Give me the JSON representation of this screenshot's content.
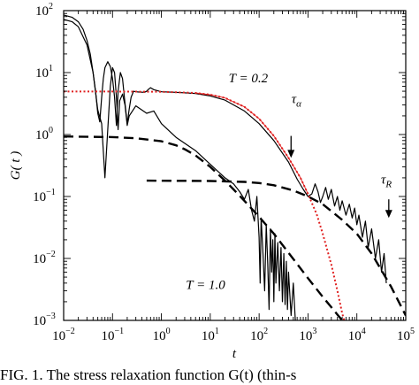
{
  "chart_data": {
    "type": "line",
    "title": "",
    "xlabel": "t",
    "ylabel": "G( t )",
    "xscale": "log",
    "yscale": "log",
    "xlim": [
      0.01,
      100000
    ],
    "ylim": [
      0.001,
      100
    ],
    "x_ticks": [
      {
        "base": "10",
        "exp": "−2",
        "value": 0.01
      },
      {
        "base": "10",
        "exp": "−1",
        "value": 0.1
      },
      {
        "base": "10",
        "exp": "0",
        "value": 1
      },
      {
        "base": "10",
        "exp": "1",
        "value": 10
      },
      {
        "base": "10",
        "exp": "2",
        "value": 100
      },
      {
        "base": "10",
        "exp": "3",
        "value": 1000
      },
      {
        "base": "10",
        "exp": "4",
        "value": 10000
      },
      {
        "base": "10",
        "exp": "5",
        "value": 100000
      }
    ],
    "y_ticks": [
      {
        "base": "10",
        "exp": "−3",
        "value": 0.001
      },
      {
        "base": "10",
        "exp": "−2",
        "value": 0.01
      },
      {
        "base": "10",
        "exp": "−1",
        "value": 0.1
      },
      {
        "base": "10",
        "exp": "0",
        "value": 1
      },
      {
        "base": "10",
        "exp": "1",
        "value": 10
      },
      {
        "base": "10",
        "exp": "2",
        "value": 100
      }
    ],
    "grid": false,
    "series": [
      {
        "style": "solid",
        "color": "#000000",
        "points": [
          [
            0.01,
            85
          ],
          [
            0.015,
            78
          ],
          [
            0.02,
            66
          ],
          [
            0.025,
            50
          ],
          [
            0.03,
            33
          ],
          [
            0.035,
            20
          ],
          [
            0.04,
            10
          ],
          [
            0.045,
            5
          ],
          [
            0.05,
            2.2
          ],
          [
            0.055,
            1.6
          ],
          [
            0.06,
            4
          ],
          [
            0.065,
            8
          ],
          [
            0.07,
            12
          ],
          [
            0.08,
            15
          ],
          [
            0.09,
            12.5
          ],
          [
            0.1,
            8
          ],
          [
            0.11,
            4
          ],
          [
            0.12,
            1.4
          ],
          [
            0.13,
            5
          ],
          [
            0.145,
            10
          ],
          [
            0.16,
            8
          ],
          [
            0.175,
            4
          ],
          [
            0.2,
            1.5
          ],
          [
            0.22,
            2.6
          ],
          [
            0.24,
            4
          ],
          [
            0.27,
            5
          ],
          [
            0.3,
            4.9
          ],
          [
            0.35,
            4.85
          ],
          [
            0.45,
            4.8
          ],
          [
            0.5,
            5
          ],
          [
            0.55,
            5.4
          ],
          [
            0.6,
            5.7
          ],
          [
            0.7,
            5.3
          ],
          [
            1,
            4.9
          ],
          [
            2,
            4.8
          ],
          [
            5,
            4.6
          ],
          [
            10,
            4.2
          ],
          [
            20,
            3.6
          ],
          [
            50,
            2.4
          ],
          [
            100,
            1.5
          ],
          [
            200,
            0.8
          ],
          [
            400,
            0.36
          ],
          [
            600,
            0.19
          ],
          [
            800,
            0.13
          ],
          [
            1000,
            0.1
          ],
          [
            1200,
            0.11
          ],
          [
            1400,
            0.16
          ],
          [
            1600,
            0.12
          ],
          [
            1800,
            0.08
          ],
          [
            2000,
            0.1
          ],
          [
            2300,
            0.14
          ],
          [
            2600,
            0.09
          ],
          [
            3000,
            0.13
          ],
          [
            3500,
            0.07
          ],
          [
            4000,
            0.1
          ],
          [
            4500,
            0.06
          ],
          [
            5000,
            0.085
          ],
          [
            6000,
            0.05
          ],
          [
            7000,
            0.075
          ],
          [
            8000,
            0.045
          ],
          [
            9000,
            0.065
          ],
          [
            10000,
            0.035
          ],
          [
            11000,
            0.05
          ],
          [
            13000,
            0.022
          ],
          [
            15000,
            0.04
          ],
          [
            17000,
            0.015
          ],
          [
            20000,
            0.03
          ],
          [
            24000,
            0.01
          ],
          [
            28000,
            0.02
          ],
          [
            32000,
            0.006
          ],
          [
            36000,
            0.012
          ],
          [
            40000,
            0.004
          ]
        ]
      },
      {
        "style": "solid",
        "color": "#000000",
        "points": [
          [
            0.01,
            72
          ],
          [
            0.015,
            66
          ],
          [
            0.02,
            55
          ],
          [
            0.03,
            28
          ],
          [
            0.04,
            10
          ],
          [
            0.05,
            2.5
          ],
          [
            0.06,
            1.5
          ],
          [
            0.07,
            0.2
          ],
          [
            0.08,
            1.2
          ],
          [
            0.09,
            6
          ],
          [
            0.1,
            12
          ],
          [
            0.11,
            10
          ],
          [
            0.12,
            4
          ],
          [
            0.13,
            1.2
          ],
          [
            0.14,
            3.5
          ],
          [
            0.16,
            4.5
          ],
          [
            0.18,
            3
          ],
          [
            0.2,
            1.4
          ],
          [
            0.22,
            2
          ],
          [
            0.3,
            2.9
          ],
          [
            0.5,
            2.2
          ],
          [
            0.7,
            2.4
          ],
          [
            1,
            1.5
          ],
          [
            2,
            0.9
          ],
          [
            5,
            0.55
          ],
          [
            10,
            0.33
          ],
          [
            20,
            0.2
          ],
          [
            30,
            0.16
          ],
          [
            40,
            0.12
          ],
          [
            50,
            0.09
          ],
          [
            60,
            0.13
          ],
          [
            70,
            0.06
          ],
          [
            80,
            0.04
          ],
          [
            90,
            0.1
          ],
          [
            100,
            0.022
          ],
          [
            105,
            0.004
          ],
          [
            110,
            0.045
          ],
          [
            120,
            0.012
          ],
          [
            130,
            0.003
          ],
          [
            140,
            0.035
          ],
          [
            150,
            0.008
          ],
          [
            160,
            0.0015
          ],
          [
            170,
            0.03
          ],
          [
            180,
            0.006
          ],
          [
            190,
            0.02
          ],
          [
            200,
            0.002
          ],
          [
            210,
            0.025
          ],
          [
            220,
            0.004
          ],
          [
            240,
            0.018
          ],
          [
            260,
            0.003
          ],
          [
            280,
            0.015
          ],
          [
            300,
            0.002
          ],
          [
            320,
            0.012
          ],
          [
            340,
            0.0018
          ],
          [
            360,
            0.009
          ],
          [
            380,
            0.0015
          ],
          [
            400,
            0.006
          ],
          [
            450,
            0.0012
          ],
          [
            500,
            0.004
          ],
          [
            550,
            0.001
          ]
        ]
      },
      {
        "style": "dashed",
        "color": "#000000",
        "points": [
          [
            0.01,
            0.93
          ],
          [
            0.1,
            0.91
          ],
          [
            0.3,
            0.87
          ],
          [
            1,
            0.78
          ],
          [
            2,
            0.67
          ],
          [
            3,
            0.58
          ],
          [
            5,
            0.46
          ],
          [
            10,
            0.3
          ],
          [
            20,
            0.18
          ],
          [
            30,
            0.13
          ],
          [
            50,
            0.085
          ],
          [
            100,
            0.047
          ],
          [
            200,
            0.025
          ],
          [
            500,
            0.0098
          ],
          [
            1000,
            0.0048
          ],
          [
            2000,
            0.0024
          ],
          [
            5000,
            0.001
          ]
        ]
      },
      {
        "style": "dashed",
        "color": "#000000",
        "points": [
          [
            0.5,
            0.18
          ],
          [
            10,
            0.178
          ],
          [
            50,
            0.172
          ],
          [
            100,
            0.165
          ],
          [
            200,
            0.152
          ],
          [
            500,
            0.125
          ],
          [
            1000,
            0.1
          ],
          [
            2000,
            0.075
          ],
          [
            5000,
            0.042
          ],
          [
            10000,
            0.025
          ],
          [
            20000,
            0.012
          ],
          [
            50000,
            0.0035
          ],
          [
            100000,
            0.0012
          ]
        ]
      },
      {
        "style": "dotted",
        "color": "#e02020",
        "points": [
          [
            0.01,
            4.95
          ],
          [
            0.1,
            4.95
          ],
          [
            1,
            4.9
          ],
          [
            5,
            4.7
          ],
          [
            10,
            4.4
          ],
          [
            20,
            3.9
          ],
          [
            50,
            2.8
          ],
          [
            100,
            1.8
          ],
          [
            200,
            0.95
          ],
          [
            400,
            0.42
          ],
          [
            700,
            0.2
          ],
          [
            1000,
            0.11
          ],
          [
            1500,
            0.052
          ],
          [
            2000,
            0.025
          ],
          [
            3000,
            0.008
          ],
          [
            4000,
            0.003
          ],
          [
            5000,
            0.0013
          ],
          [
            5500,
            0.001
          ]
        ]
      },
      {
        "style": "solid-thin",
        "color": "#e02020",
        "points": [
          [
            5,
            4.7
          ],
          [
            10,
            4.4
          ],
          [
            20,
            3.9
          ],
          [
            50,
            2.8
          ],
          [
            100,
            1.8
          ],
          [
            200,
            0.95
          ],
          [
            400,
            0.42
          ],
          [
            700,
            0.2
          ],
          [
            1000,
            0.11
          ]
        ]
      }
    ],
    "annotations": [
      {
        "text": "T = 0.2",
        "at": [
          60,
          7
        ]
      },
      {
        "text": "T = 1.0",
        "at": [
          8,
          0.0032
        ]
      },
      {
        "text": "τ",
        "sub": "α",
        "at": [
          580,
          3.2
        ]
      },
      {
        "text": "τ",
        "sub": "R",
        "at": [
          40000,
          0.16
        ]
      }
    ],
    "arrows": [
      {
        "x": 450,
        "y_from": 0.95,
        "y_to": 0.42
      },
      {
        "x": 45000,
        "y_from": 0.09,
        "y_to": 0.045
      }
    ]
  },
  "caption": "FIG. 1. The stress relaxation function G(t) (thin-s"
}
